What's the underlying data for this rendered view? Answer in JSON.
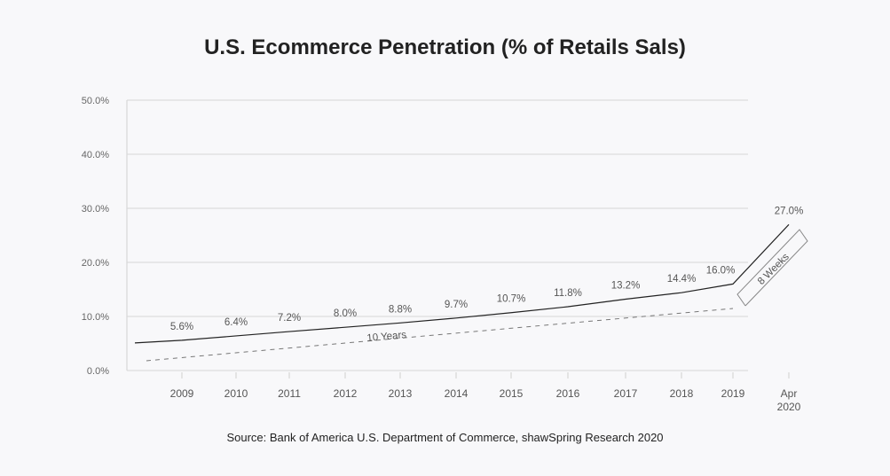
{
  "chart_data": {
    "type": "line",
    "title": "U.S. Ecommerce Penetration (% of Retails Sals)",
    "source": "Source: Bank of America U.S. Department of Commerce, shawSpring Research 2020",
    "y_ticks": [
      "0.0%",
      "10.0%",
      "20.0%",
      "30.0%",
      "40.0%",
      "50.0%"
    ],
    "ylim": [
      0,
      50
    ],
    "categories": [
      "2009",
      "2010",
      "2011",
      "2012",
      "2013",
      "2014",
      "2015",
      "2016",
      "2017",
      "2018",
      "2019",
      "Apr 2020"
    ],
    "series": [
      {
        "values": [
          5.6,
          6.4,
          7.2,
          8.0,
          8.8,
          9.7,
          10.7,
          11.8,
          13.2,
          14.4,
          16.0,
          27.0
        ],
        "labels": [
          "5.6%",
          "6.4%",
          "7.2%",
          "8.0%",
          "8.8%",
          "9.7%",
          "10.7%",
          "11.8%",
          "13.2%",
          "14.4%",
          "16.0%",
          "27.0%"
        ],
        "color": "#222222"
      }
    ],
    "annotations": {
      "ten_years": "10 Years",
      "eight_weeks": "8 Weeks"
    },
    "grid": "horizontal",
    "colors": {
      "gridline": "#d6d6d6",
      "line": "#222222",
      "background": "#f8f8fa"
    }
  }
}
